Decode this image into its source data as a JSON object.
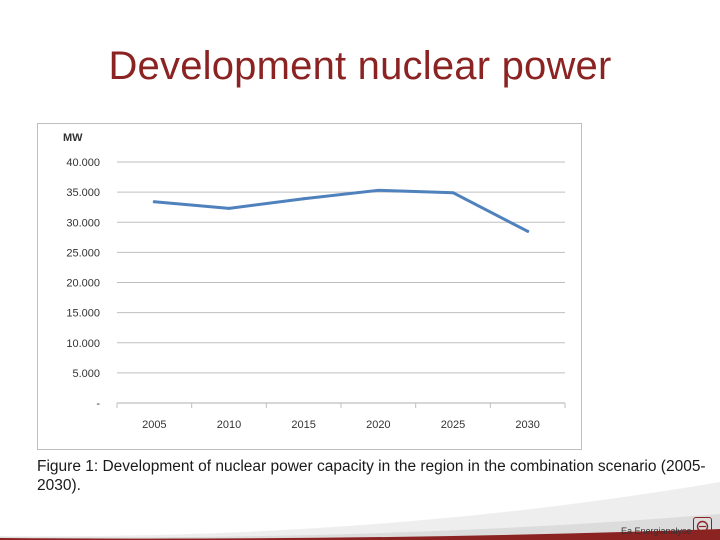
{
  "slide": {
    "title": "Development nuclear power",
    "caption": "Figure 1: Development of nuclear power capacity in the region in the combination scenario (2005-2030).",
    "brand": "Ea Energianalyse"
  },
  "colors": {
    "title": "#8b2323",
    "line": "#4f81bd",
    "grid": "#bfbfbf",
    "footer": "#8b2323"
  },
  "chart_data": {
    "type": "line",
    "ylabel": "MW",
    "categories": [
      "2005",
      "2010",
      "2015",
      "2020",
      "2025",
      "2030"
    ],
    "series": [
      {
        "values": [
          33400,
          32300,
          33900,
          35300,
          34900,
          28500
        ]
      }
    ],
    "ylim": [
      0,
      40000
    ],
    "yticks": [
      0,
      5000,
      10000,
      15000,
      20000,
      25000,
      30000,
      35000,
      40000
    ],
    "ytick_labels": [
      "-",
      "5.000",
      "10.000",
      "15.000",
      "20.000",
      "25.000",
      "30.000",
      "35.000",
      "40.000"
    ],
    "grid": true,
    "legend": "none"
  }
}
